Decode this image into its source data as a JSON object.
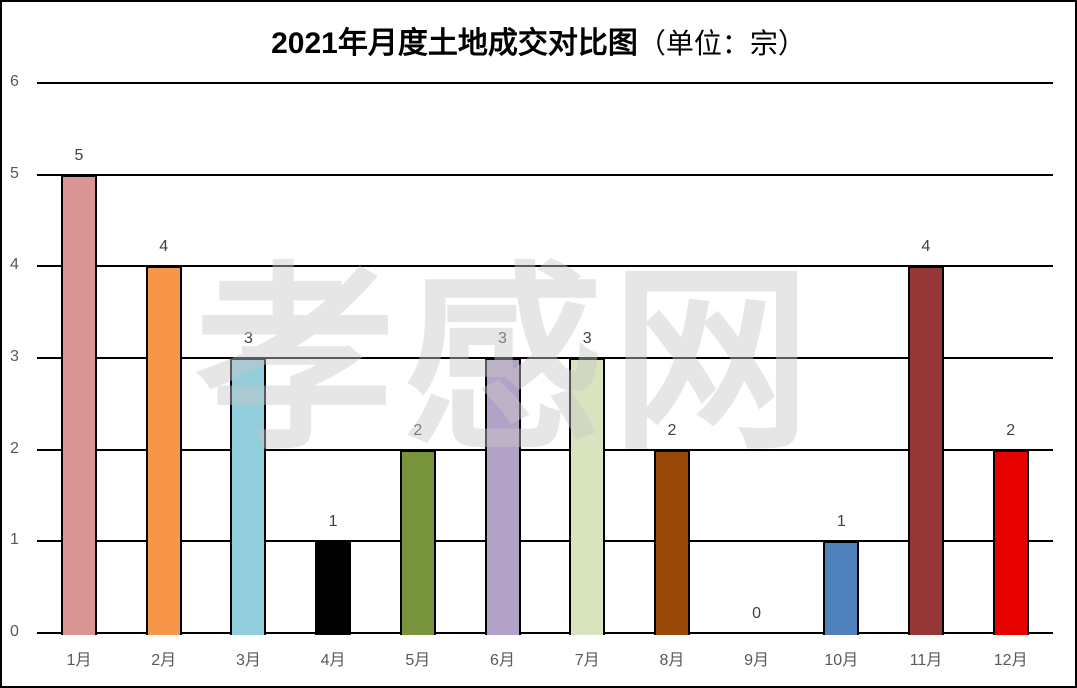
{
  "title": {
    "main": "2021年月度土地成交对比图",
    "unit": "（单位：宗）"
  },
  "watermark": "孝感网",
  "chart_data": {
    "type": "bar",
    "title": "2021年月度土地成交对比图（单位：宗）",
    "xlabel": "",
    "ylabel": "宗",
    "ylim": [
      0,
      6
    ],
    "yticks": [
      0,
      1,
      2,
      3,
      4,
      5,
      6
    ],
    "grid": true,
    "legend": null,
    "categories": [
      "1月",
      "2月",
      "3月",
      "4月",
      "5月",
      "6月",
      "7月",
      "8月",
      "9月",
      "10月",
      "11月",
      "12月"
    ],
    "values": [
      5,
      4,
      3,
      1,
      2,
      3,
      3,
      2,
      0,
      1,
      4,
      2
    ],
    "colors": [
      "#D99594",
      "#F79646",
      "#92CDDC",
      "#000000",
      "#77933C",
      "#B2A2C7",
      "#D7E4BD",
      "#984807",
      "#FFFFFF",
      "#4F81BD",
      "#953735",
      "#E60000"
    ],
    "data_labels": [
      "5",
      "4",
      "3",
      "1",
      "2",
      "3",
      "3",
      "2",
      "0",
      "1",
      "4",
      "2"
    ]
  }
}
